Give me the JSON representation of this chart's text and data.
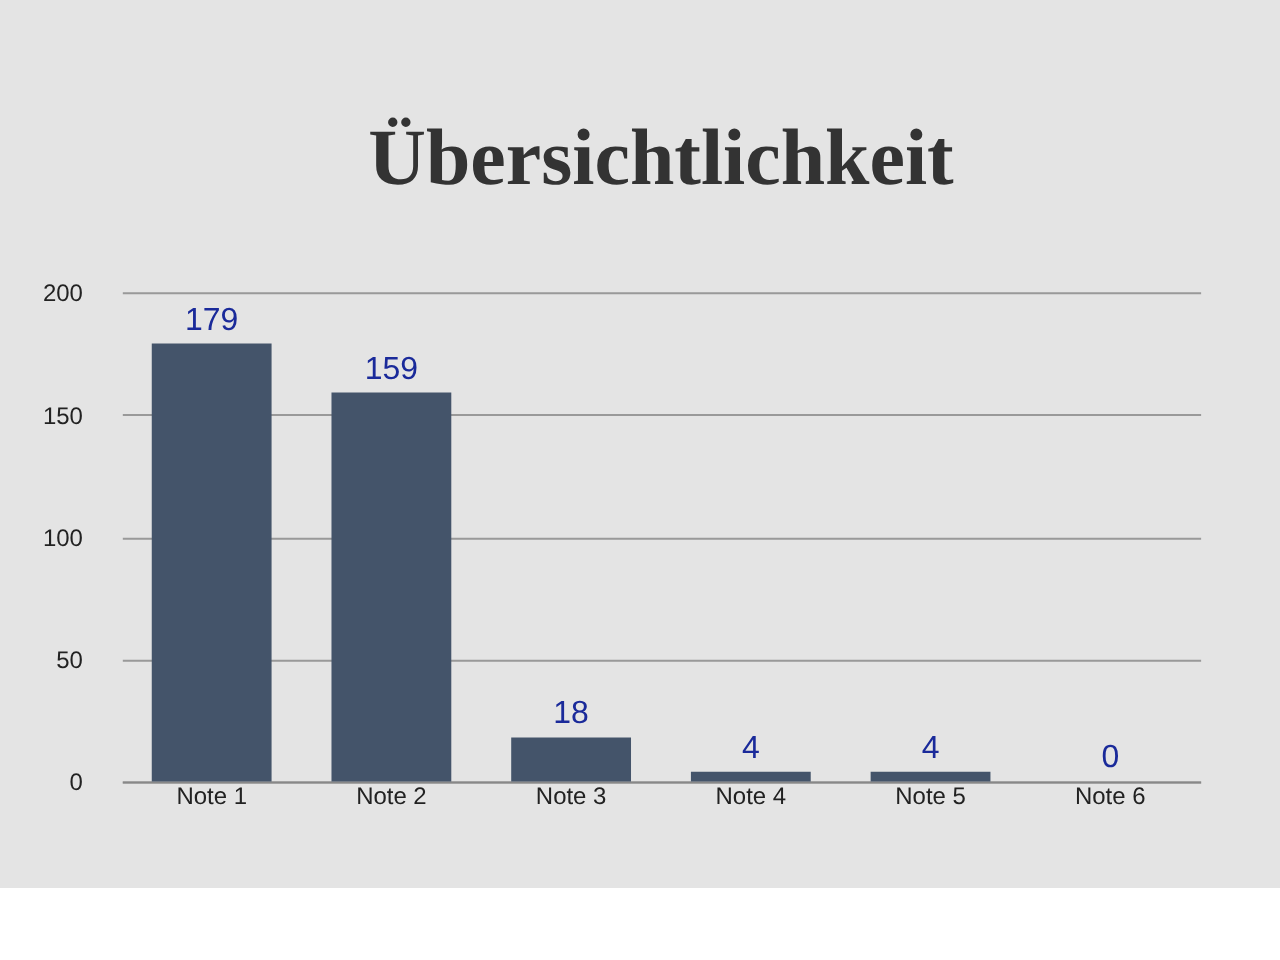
{
  "chart_data": {
    "type": "bar",
    "title": "Übersichtlichkeit",
    "categories": [
      "Note 1",
      "Note 2",
      "Note 3",
      "Note 4",
      "Note 5",
      "Note 6"
    ],
    "values": [
      179,
      159,
      18,
      4,
      4,
      0
    ],
    "color": "#44546a",
    "ylim": [
      0,
      200
    ],
    "yticks": [
      0,
      50,
      100,
      150,
      200
    ],
    "grid": "y",
    "data_labels": true
  }
}
